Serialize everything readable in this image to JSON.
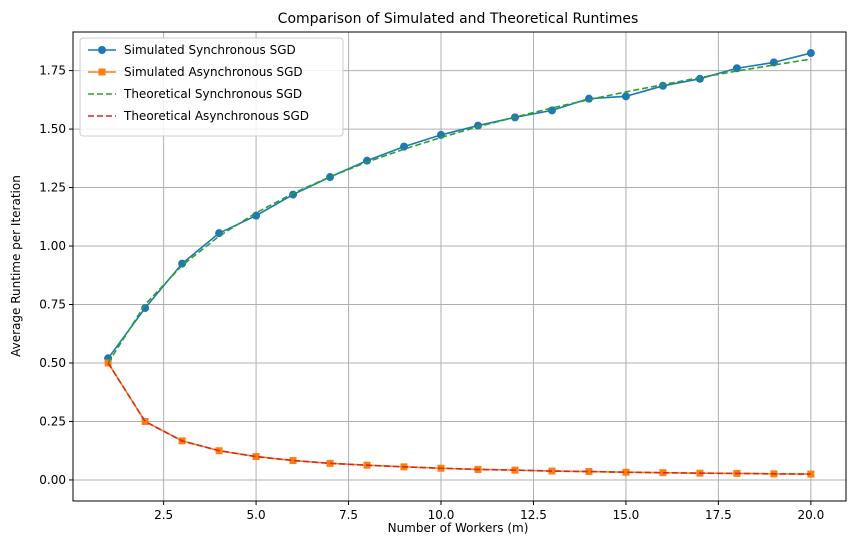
{
  "chart_data": {
    "type": "line",
    "title": "Comparison of Simulated and Theoretical Runtimes",
    "xlabel": "Number of Workers (m)",
    "ylabel": "Average Runtime per Iteration",
    "xlim": [
      0.05,
      20.95
    ],
    "ylim": [
      -0.09,
      1.915
    ],
    "x_ticks": [
      2.5,
      5.0,
      7.5,
      10.0,
      12.5,
      15.0,
      17.5,
      20.0
    ],
    "x_tick_labels": [
      "2.5",
      "5.0",
      "7.5",
      "10.0",
      "12.5",
      "15.0",
      "17.5",
      "20.0"
    ],
    "y_ticks": [
      0.0,
      0.25,
      0.5,
      0.75,
      1.0,
      1.25,
      1.5,
      1.75
    ],
    "y_tick_labels": [
      "0.00",
      "0.25",
      "0.50",
      "0.75",
      "1.00",
      "1.25",
      "1.50",
      "1.75"
    ],
    "grid": true,
    "legend_position": "top-left",
    "x": [
      1,
      2,
      3,
      4,
      5,
      6,
      7,
      8,
      9,
      10,
      11,
      12,
      13,
      14,
      15,
      16,
      17,
      18,
      19,
      20
    ],
    "series": [
      {
        "name": "Simulated Synchronous SGD",
        "color": "#1f77b4",
        "style": "solid",
        "marker": "circle",
        "values": [
          0.52,
          0.735,
          0.925,
          1.055,
          1.13,
          1.22,
          1.295,
          1.365,
          1.425,
          1.475,
          1.515,
          1.55,
          1.58,
          1.63,
          1.64,
          1.685,
          1.715,
          1.76,
          1.785,
          1.825
        ]
      },
      {
        "name": "Simulated Asynchronous SGD",
        "color": "#ff7f0e",
        "style": "solid",
        "marker": "square",
        "values": [
          0.5,
          0.25,
          0.167,
          0.125,
          0.1,
          0.083,
          0.071,
          0.063,
          0.056,
          0.05,
          0.045,
          0.042,
          0.038,
          0.036,
          0.033,
          0.031,
          0.029,
          0.028,
          0.026,
          0.025
        ]
      },
      {
        "name": "Theoretical Synchronous SGD",
        "color": "#2ca02c",
        "style": "dashed",
        "marker": "none",
        "values": [
          0.5,
          0.75,
          0.917,
          1.042,
          1.142,
          1.225,
          1.296,
          1.359,
          1.414,
          1.464,
          1.51,
          1.551,
          1.59,
          1.626,
          1.659,
          1.69,
          1.72,
          1.748,
          1.774,
          1.799
        ]
      },
      {
        "name": "Theoretical Asynchronous SGD",
        "color": "#d62728",
        "style": "dashed",
        "marker": "none",
        "values": [
          0.5,
          0.25,
          0.167,
          0.125,
          0.1,
          0.083,
          0.071,
          0.063,
          0.056,
          0.05,
          0.045,
          0.042,
          0.038,
          0.036,
          0.033,
          0.031,
          0.029,
          0.028,
          0.026,
          0.025
        ]
      }
    ]
  }
}
